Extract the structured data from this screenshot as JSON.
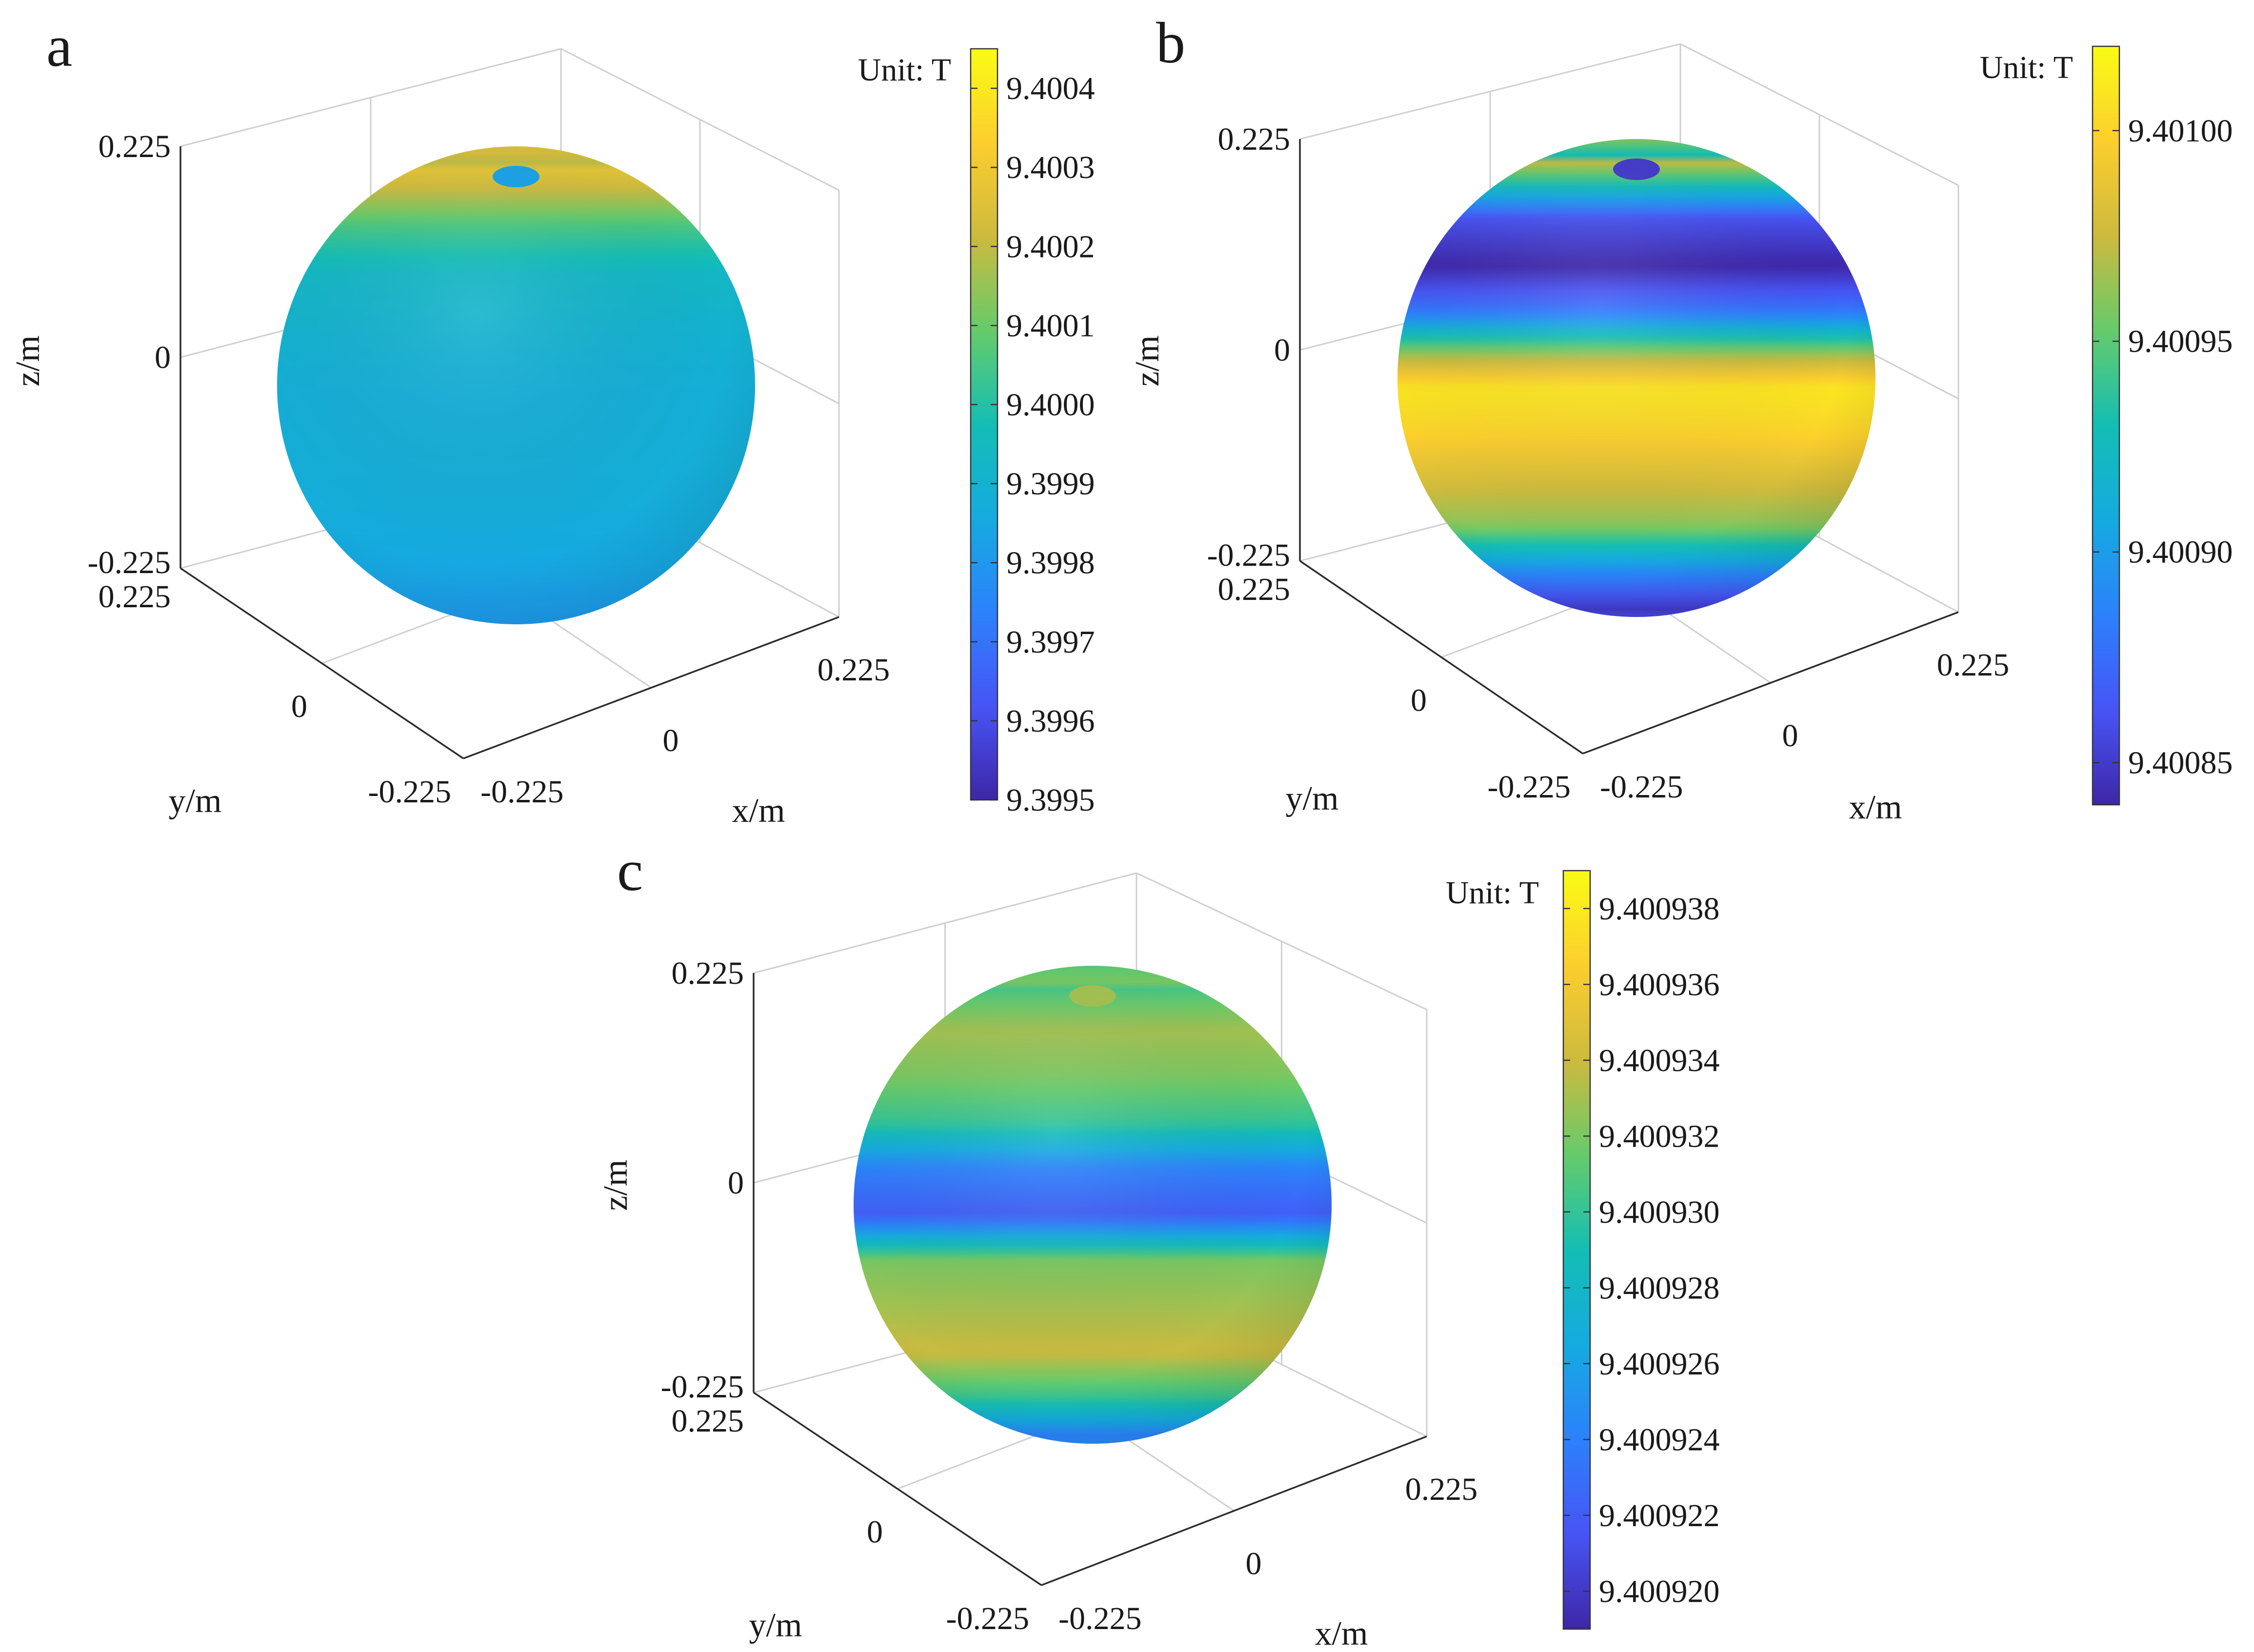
{
  "chart_data": [
    {
      "type": "surface",
      "panel": "a",
      "xlabel": "x/m",
      "ylabel": "y/m",
      "zlabel": "z/m",
      "x_ticks": [
        "-0.225",
        "0",
        "0.225"
      ],
      "y_ticks": [
        "-0.225",
        "0",
        "0.225"
      ],
      "z_ticks": [
        "-0.225",
        "0",
        "0.225"
      ],
      "xlim": [
        -0.225,
        0.225
      ],
      "ylim": [
        -0.225,
        0.225
      ],
      "zlim": [
        -0.225,
        0.225
      ],
      "colorbar": {
        "unit": "Unit: T",
        "min": 9.3995,
        "max": 9.40045,
        "ticks": [
          "9.3995",
          "9.3996",
          "9.3997",
          "9.3998",
          "9.3999",
          "9.4000",
          "9.4001",
          "9.4002",
          "9.4003",
          "9.4004"
        ],
        "tick_values": [
          9.3995,
          9.3996,
          9.3997,
          9.3998,
          9.3999,
          9.4,
          9.4001,
          9.4002,
          9.4003,
          9.4004
        ]
      },
      "field_by_latitude": {
        "z_over_r": [
          1.0,
          0.97,
          0.9,
          0.8,
          0.68,
          0.55,
          0.4,
          0.2,
          0.0,
          -0.2,
          -0.4,
          -0.55,
          -0.68,
          -0.8,
          -0.9,
          -1.0
        ],
        "value": [
          9.39983,
          9.40028,
          9.40035,
          9.40033,
          9.40022,
          9.40005,
          9.39993,
          9.3999,
          9.39988,
          9.39988,
          9.39987,
          9.39985,
          9.39982,
          9.3998,
          9.39978,
          9.39976
        ]
      }
    },
    {
      "type": "surface",
      "panel": "b",
      "xlabel": "x/m",
      "ylabel": "y/m",
      "zlabel": "z/m",
      "x_ticks": [
        "-0.225",
        "0",
        "0.225"
      ],
      "y_ticks": [
        "-0.225",
        "0",
        "0.225"
      ],
      "z_ticks": [
        "-0.225",
        "0",
        "0.225"
      ],
      "xlim": [
        -0.225,
        0.225
      ],
      "ylim": [
        -0.225,
        0.225
      ],
      "zlim": [
        -0.225,
        0.225
      ],
      "colorbar": {
        "unit": "Unit: T",
        "min": 9.40084,
        "max": 9.40102,
        "ticks": [
          "9.40085",
          "9.40090",
          "9.40095",
          "9.40100"
        ],
        "tick_values": [
          9.40085,
          9.4009,
          9.40095,
          9.401
        ]
      },
      "field_by_latitude": {
        "z_over_r": [
          1.0,
          0.96,
          0.9,
          0.8,
          0.68,
          0.55,
          0.4,
          0.25,
          0.1,
          0.0,
          -0.15,
          -0.3,
          -0.45,
          -0.6,
          -0.72,
          -0.84,
          -0.94,
          -1.0
        ],
        "value": [
          9.40085,
          9.4009,
          9.40099,
          9.40101,
          9.40094,
          9.40086,
          9.40084,
          9.40088,
          9.40097,
          9.40101,
          9.401,
          9.40098,
          9.40096,
          9.40089,
          9.40085,
          9.40088,
          9.40096,
          9.40098
        ]
      }
    },
    {
      "type": "surface",
      "panel": "c",
      "xlabel": "x/m",
      "ylabel": "y/m",
      "zlabel": "z/m",
      "x_ticks": [
        "-0.225",
        "0",
        "0.225"
      ],
      "y_ticks": [
        "-0.225",
        "0",
        "0.225"
      ],
      "z_ticks": [
        "-0.225",
        "0",
        "0.225"
      ],
      "xlim": [
        -0.225,
        0.225
      ],
      "ylim": [
        -0.225,
        0.225
      ],
      "zlim": [
        -0.225,
        0.225
      ],
      "colorbar": {
        "unit": "Unit: T",
        "min": 9.400919,
        "max": 9.400939,
        "ticks": [
          "9.400938",
          "9.400936",
          "9.400934",
          "9.400932",
          "9.400930",
          "9.400928",
          "9.400926",
          "9.400924",
          "9.400922",
          "9.400920"
        ],
        "tick_values": [
          9.400938,
          9.400936,
          9.400934,
          9.400932,
          9.40093,
          9.400928,
          9.400926,
          9.400924,
          9.400922,
          9.40092
        ]
      },
      "field_by_latitude": {
        "z_over_r": [
          1.0,
          0.95,
          0.9,
          0.82,
          0.72,
          0.6,
          0.45,
          0.3,
          0.15,
          0.0,
          -0.15,
          -0.3,
          -0.45,
          -0.6,
          -0.72,
          -0.84,
          -0.94,
          -1.0
        ],
        "value": [
          9.400933,
          9.400927,
          9.400934,
          9.400928,
          9.400931,
          9.400933,
          9.400932,
          9.40093,
          9.400924,
          9.400922,
          9.400932,
          9.400933,
          9.400934,
          9.40093,
          9.400924,
          9.400927,
          9.400925,
          9.400928
        ]
      }
    }
  ]
}
